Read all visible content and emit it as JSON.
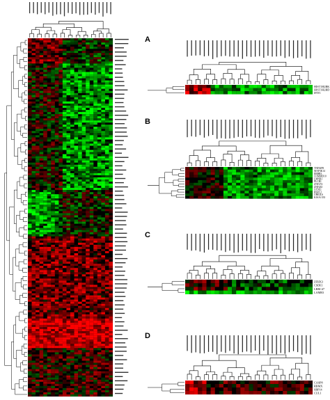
{
  "panels": [
    {
      "letter": "A",
      "genes": [
        "HIST1H2BK",
        "HIST1H2BD",
        "IFIT1"
      ]
    },
    {
      "letter": "B",
      "genes": [
        "TNFAIP8",
        "MAP3K14",
        "ERBB3",
        "COMMD10",
        "LMNB1",
        "PLCB1",
        "ZNF274",
        "ZNF433",
        "GTSE1",
        "RSRC2",
        "UBE2L6",
        "KIAA1333"
      ]
    },
    {
      "letter": "C",
      "genes": [
        "ZFHX3",
        "CSDE1",
        "LRRC47",
        "LAMB3"
      ]
    },
    {
      "letter": "D",
      "genes": [
        "CASP8",
        "RBMX",
        "SRP14",
        "CUL1"
      ]
    }
  ],
  "main_heatmap": {
    "rows": 170,
    "cols": 22
  },
  "colors": {
    "up": "#ff0000",
    "down": "#00ff00",
    "neutral": "#000000"
  }
}
